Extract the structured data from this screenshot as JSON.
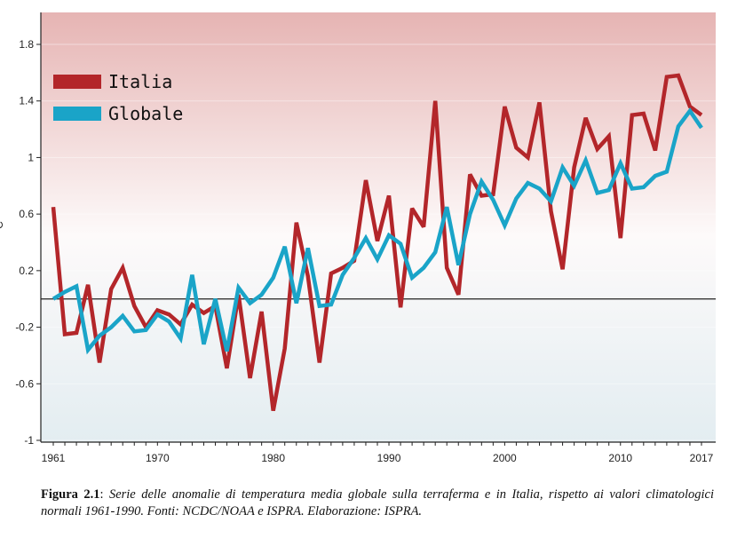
{
  "chart_data": {
    "type": "line",
    "ylabel": "°C",
    "ylim": [
      -1,
      2.0
    ],
    "xlim": [
      1960,
      2018
    ],
    "yticks": [
      {
        "value": 1.8,
        "label": "1.8"
      },
      {
        "value": 1.4,
        "label": "1.4"
      },
      {
        "value": 1.0,
        "label": "1"
      },
      {
        "value": 0.6,
        "label": "0.6"
      },
      {
        "value": 0.2,
        "label": "0.2"
      },
      {
        "value": -0.2,
        "label": "-0.2"
      },
      {
        "value": -0.6,
        "label": "-0.6"
      },
      {
        "value": -1.0,
        "label": "-1"
      }
    ],
    "xticks": [
      {
        "value": 1961,
        "label": "1961"
      },
      {
        "value": 1970,
        "label": "1970"
      },
      {
        "value": 1980,
        "label": "1980"
      },
      {
        "value": 1990,
        "label": "1990"
      },
      {
        "value": 2000,
        "label": "2000"
      },
      {
        "value": 2010,
        "label": "2010"
      },
      {
        "value": 2017,
        "label": "2017"
      }
    ],
    "grid": true,
    "legend": "top-left",
    "x": [
      1961,
      1962,
      1963,
      1964,
      1965,
      1966,
      1967,
      1968,
      1969,
      1970,
      1971,
      1972,
      1973,
      1974,
      1975,
      1976,
      1977,
      1978,
      1979,
      1980,
      1981,
      1982,
      1983,
      1984,
      1985,
      1986,
      1987,
      1988,
      1989,
      1990,
      1991,
      1992,
      1993,
      1994,
      1995,
      1996,
      1997,
      1998,
      1999,
      2000,
      2001,
      2002,
      2003,
      2004,
      2005,
      2006,
      2007,
      2008,
      2009,
      2010,
      2011,
      2012,
      2013,
      2014,
      2015,
      2016,
      2017
    ],
    "series": [
      {
        "name": "Italia",
        "color": "#b3262a",
        "values": [
          0.65,
          -0.25,
          -0.24,
          0.1,
          -0.45,
          0.07,
          0.22,
          -0.05,
          -0.2,
          -0.08,
          -0.11,
          -0.18,
          -0.04,
          -0.1,
          -0.05,
          -0.49,
          0.03,
          -0.56,
          -0.09,
          -0.79,
          -0.35,
          0.54,
          0.16,
          -0.45,
          0.18,
          0.22,
          0.27,
          0.84,
          0.41,
          0.73,
          -0.06,
          0.64,
          0.51,
          1.4,
          0.22,
          0.03,
          0.88,
          0.73,
          0.74,
          1.36,
          1.07,
          1.0,
          1.39,
          0.62,
          0.21,
          0.93,
          1.28,
          1.06,
          1.15,
          0.43,
          1.3,
          1.31,
          1.05,
          1.57,
          1.58,
          1.36,
          1.3
        ]
      },
      {
        "name": "Globale",
        "color": "#1aa4c8",
        "values": [
          0.0,
          0.05,
          0.09,
          -0.36,
          -0.26,
          -0.2,
          -0.12,
          -0.23,
          -0.22,
          -0.11,
          -0.16,
          -0.28,
          0.17,
          -0.32,
          0.0,
          -0.37,
          0.08,
          -0.03,
          0.03,
          0.15,
          0.37,
          -0.03,
          0.36,
          -0.05,
          -0.04,
          0.17,
          0.29,
          0.43,
          0.28,
          0.45,
          0.39,
          0.15,
          0.22,
          0.33,
          0.65,
          0.24,
          0.6,
          0.83,
          0.7,
          0.52,
          0.71,
          0.82,
          0.78,
          0.69,
          0.93,
          0.8,
          0.98,
          0.75,
          0.77,
          0.96,
          0.78,
          0.79,
          0.87,
          0.9,
          1.22,
          1.33,
          1.21
        ]
      }
    ]
  },
  "caption": {
    "label": "Figura 2.1",
    "text": "Serie delle anomalie di temperatura media globale sulla terraferma e in Italia, rispetto ai valori climatologici normali 1961-1990. Fonti: NCDC/NOAA e ISPRA. Elaborazione: ISPRA."
  }
}
